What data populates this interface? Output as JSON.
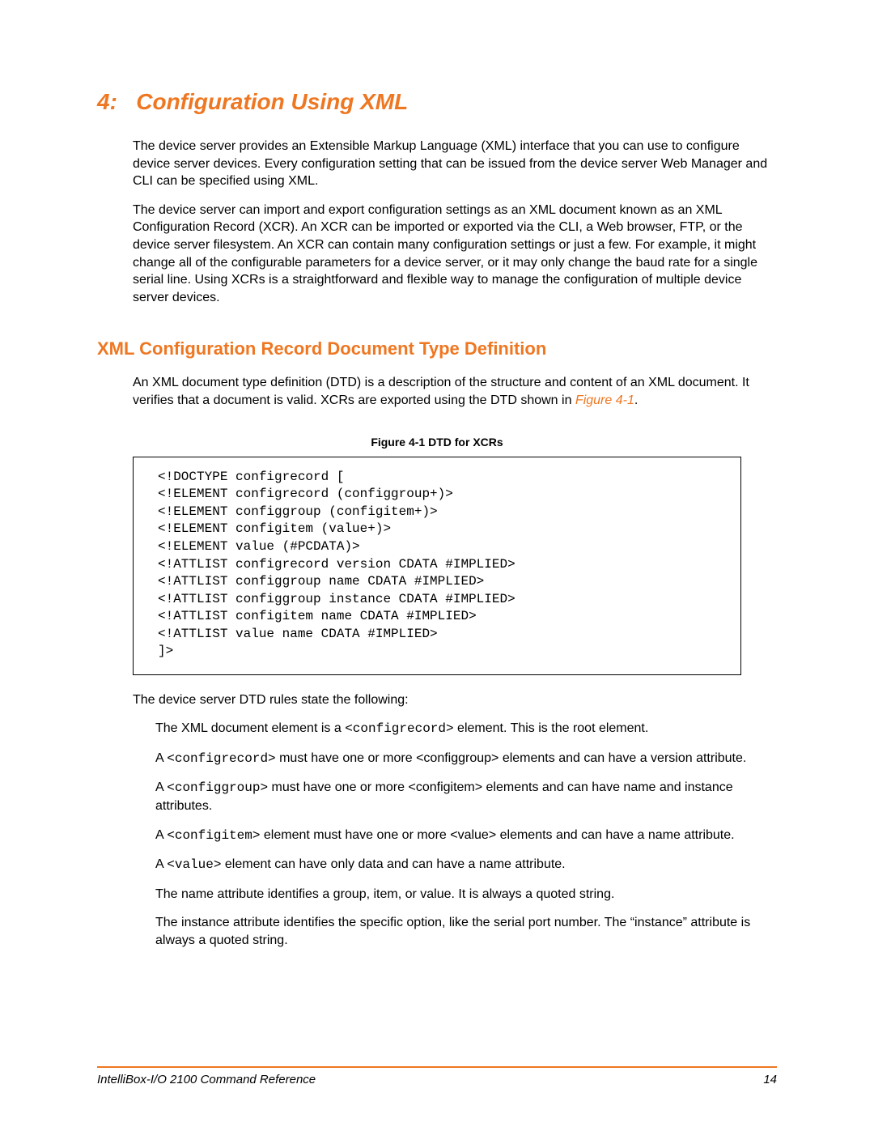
{
  "colors": {
    "accent": "#ee7722",
    "text": "#000000",
    "background": "#ffffff",
    "border": "#000000"
  },
  "typography": {
    "body_font": "Arial",
    "code_font": "Courier New",
    "chapter_title_size_pt": 21,
    "section_title_size_pt": 16,
    "body_size_pt": 12,
    "caption_size_pt": 10
  },
  "chapter": {
    "number_label": "4:",
    "title": "Configuration Using XML"
  },
  "intro": {
    "p1": "The device server provides an Extensible Markup Language (XML) interface that you can use to configure device server devices. Every configuration setting that can be issued from the device server Web Manager and CLI can be specified using XML.",
    "p2": "The device server can import and export configuration settings as an XML document known as an XML Configuration Record (XCR). An XCR can be imported or exported via the CLI, a Web browser, FTP, or the device server filesystem. An XCR can contain many configuration settings or just a few. For example, it might change all of the configurable parameters for a device server, or it may only change the baud rate for a single serial line. Using XCRs is a straightforward and flexible way to manage the configuration of multiple device server devices."
  },
  "section": {
    "title": "XML Configuration Record Document Type Definition",
    "p1_pre": "An XML document type definition (DTD) is a description of the structure and content of an XML document. It verifies that a document is valid. XCRs are exported using the DTD shown in ",
    "fig_ref": "Figure 4-1",
    "p1_post": "."
  },
  "figure": {
    "caption": "Figure 4-1  DTD for XCRs",
    "code": "<!DOCTYPE configrecord [\n<!ELEMENT configrecord (configgroup+)>\n<!ELEMENT configgroup (configitem+)>\n<!ELEMENT configitem (value+)>\n<!ELEMENT value (#PCDATA)>\n<!ATTLIST configrecord version CDATA #IMPLIED>\n<!ATTLIST configgroup name CDATA #IMPLIED>\n<!ATTLIST configgroup instance CDATA #IMPLIED>\n<!ATTLIST configitem name CDATA #IMPLIED>\n<!ATTLIST value name CDATA #IMPLIED>\n]>"
  },
  "rules": {
    "intro": "The device server DTD rules state the following:",
    "item1_a": "The XML document element is a ",
    "item1_code": "<configrecord>",
    "item1_b": "  element. This is the root element.",
    "item2_a": "A ",
    "item2_code": "<configrecord>",
    "item2_b": "  must have one or more <configgroup> elements and can have a version attribute.",
    "item3_a": "A ",
    "item3_code": "<configgroup>",
    "item3_b": "  must have one or more <configitem> elements and can have name and instance attributes.",
    "item4_a": "A  ",
    "item4_code": "<configitem>",
    "item4_b": " element must have one or more <value> elements and can have a name attribute.",
    "item5_a": "A ",
    "item5_code": "<value>",
    "item5_b": " element can have only data and can have a name attribute.",
    "item6": "The name attribute identifies a group, item, or value. It is always a quoted string.",
    "item7": "The instance attribute identifies the specific option, like the serial port number. The “instance” attribute is always a quoted string."
  },
  "footer": {
    "doc_title": "IntelliBox-I/O 2100 Command Reference",
    "page_number": "14"
  }
}
